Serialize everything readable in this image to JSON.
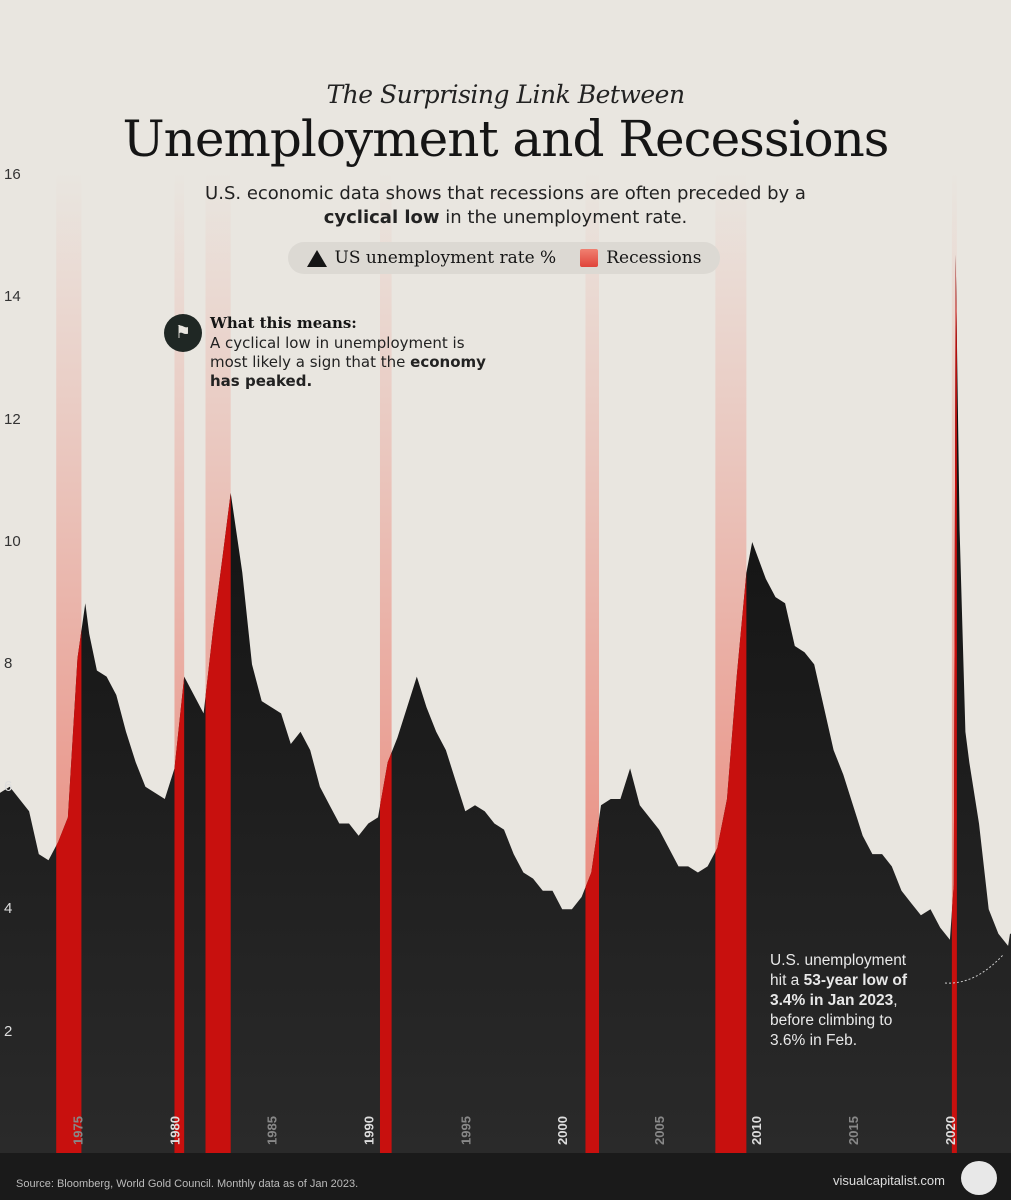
{
  "header": {
    "kicker": "The Surprising Link Between",
    "title": "Unemployment and Recessions",
    "subtitle_pre": "U.S. economic data shows that recessions are often preceded by a",
    "subtitle_bold": "cyclical low",
    "subtitle_post": " in the unemployment rate."
  },
  "legend": {
    "unemployment": "US unemployment rate %",
    "recessions": "Recessions"
  },
  "callout": {
    "heading": "What this means:",
    "body": "A cyclical low in unemployment is most likely a sign that the ",
    "body_bold": "economy has peaked.",
    "icon": "mountain-flag-icon"
  },
  "note": {
    "line1": "U.S. unemployment",
    "line2_pre": "hit a ",
    "line2_bold": "53-year low of",
    "line3_bold": "3.4% in Jan 2023",
    "line3_post": ",",
    "line4": "before climbing to",
    "line5": "3.6% in Feb."
  },
  "footer": {
    "source": "Source: Bloomberg, World Gold Council. Monthly data as of Jan 2023.",
    "brand": "visualcapitalist.com"
  },
  "colors": {
    "background": "#e9e6e0",
    "area": "#151515",
    "recession": "#c8100e",
    "footer": "#1a1a1a"
  },
  "chart_data": {
    "type": "area",
    "title": "Unemployment and Recessions",
    "xlabel": "",
    "ylabel": "",
    "xlim": [
      1971,
      2023.15
    ],
    "ylim": [
      0,
      16
    ],
    "x_ticks": [
      "1975",
      "1980",
      "1985",
      "1990",
      "1995",
      "2000",
      "2005",
      "2010",
      "2015",
      "2020"
    ],
    "y_ticks": [
      "2",
      "4",
      "6",
      "8",
      "10",
      "12",
      "14",
      "16"
    ],
    "grid": false,
    "series": [
      {
        "name": "US unemployment rate %",
        "x": [
          1971.0,
          1971.5,
          1972.0,
          1972.5,
          1973.0,
          1973.5,
          1974.0,
          1974.5,
          1975.0,
          1975.4,
          1975.6,
          1976.0,
          1976.5,
          1977.0,
          1977.5,
          1978.0,
          1978.5,
          1979.0,
          1979.5,
          1980.0,
          1980.5,
          1981.0,
          1981.5,
          1982.0,
          1982.5,
          1982.9,
          1983.5,
          1984.0,
          1984.5,
          1985.0,
          1985.5,
          1986.0,
          1986.5,
          1987.0,
          1987.5,
          1988.0,
          1988.5,
          1989.0,
          1989.5,
          1990.0,
          1990.5,
          1991.0,
          1991.5,
          1992.0,
          1992.5,
          1993.0,
          1993.5,
          1994.0,
          1994.5,
          1995.0,
          1995.5,
          1996.0,
          1996.5,
          1997.0,
          1997.5,
          1998.0,
          1998.5,
          1999.0,
          1999.5,
          2000.0,
          2000.5,
          2001.0,
          2001.5,
          2002.0,
          2002.5,
          2003.0,
          2003.5,
          2004.0,
          2004.5,
          2005.0,
          2005.5,
          2006.0,
          2006.5,
          2007.0,
          2007.5,
          2008.0,
          2008.5,
          2009.0,
          2009.5,
          2009.8,
          2010.5,
          2011.0,
          2011.5,
          2012.0,
          2012.5,
          2013.0,
          2013.5,
          2014.0,
          2014.5,
          2015.0,
          2015.5,
          2016.0,
          2016.5,
          2017.0,
          2017.5,
          2018.0,
          2018.5,
          2019.0,
          2019.5,
          2020.0,
          2020.2,
          2020.3,
          2020.5,
          2020.8,
          2021.0,
          2021.5,
          2022.0,
          2022.5,
          2023.0,
          2023.1
        ],
        "values": [
          5.9,
          6.0,
          5.8,
          5.6,
          4.9,
          4.8,
          5.1,
          5.5,
          8.1,
          9.0,
          8.5,
          7.9,
          7.8,
          7.5,
          6.9,
          6.4,
          6.0,
          5.9,
          5.8,
          6.3,
          7.8,
          7.5,
          7.2,
          8.6,
          9.8,
          10.8,
          9.5,
          8.0,
          7.4,
          7.3,
          7.2,
          6.7,
          6.9,
          6.6,
          6.0,
          5.7,
          5.4,
          5.4,
          5.2,
          5.4,
          5.5,
          6.4,
          6.8,
          7.3,
          7.8,
          7.3,
          6.9,
          6.6,
          6.1,
          5.6,
          5.7,
          5.6,
          5.4,
          5.3,
          4.9,
          4.6,
          4.5,
          4.3,
          4.3,
          4.0,
          4.0,
          4.2,
          4.6,
          5.7,
          5.8,
          5.8,
          6.3,
          5.7,
          5.5,
          5.3,
          5.0,
          4.7,
          4.7,
          4.6,
          4.7,
          5.0,
          5.8,
          7.8,
          9.5,
          10.0,
          9.4,
          9.1,
          9.0,
          8.3,
          8.2,
          8.0,
          7.3,
          6.6,
          6.2,
          5.7,
          5.2,
          4.9,
          4.9,
          4.7,
          4.3,
          4.1,
          3.9,
          4.0,
          3.7,
          3.5,
          4.4,
          14.7,
          10.2,
          6.9,
          6.4,
          5.4,
          4.0,
          3.6,
          3.4,
          3.6
        ]
      }
    ],
    "recessions": [
      [
        1973.9,
        1975.2
      ],
      [
        1980.0,
        1980.5
      ],
      [
        1981.6,
        1982.9
      ],
      [
        1990.6,
        1991.2
      ],
      [
        2001.2,
        2001.9
      ],
      [
        2007.9,
        2009.5
      ],
      [
        2020.1,
        2020.3
      ]
    ]
  }
}
